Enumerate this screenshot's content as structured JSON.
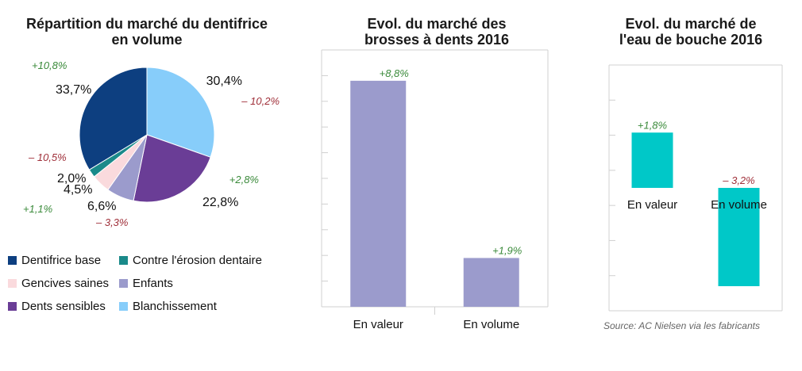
{
  "source": "Source: AC Nielsen via les fabricants",
  "colors": {
    "dentifrice_base": "#0d3f80",
    "erosion": "#1a8a8a",
    "gencives": "#fadadd",
    "enfants": "#9b9bcc",
    "sensibles": "#6a3d96",
    "blanchissement": "#87cdfa",
    "brosses_bar": "#9b9bcc",
    "eau_bar": "#00c8c8",
    "positive_label": "#3a8a3a",
    "negative_label": "#a0303a",
    "grid": "#d0d0d0"
  },
  "chart_data": [
    {
      "type": "pie",
      "title_line1": "Répartition du marché du dentifrice",
      "title_line2": "en volume",
      "slices": [
        {
          "name": "Blanchissement",
          "value": 30.4,
          "label": "30,4%",
          "change": "– 10,2%",
          "color_key": "blanchissement",
          "positive": false
        },
        {
          "name": "Dents sensibles",
          "value": 22.8,
          "label": "22,8%",
          "change": "+2,8%",
          "color_key": "sensibles",
          "positive": true
        },
        {
          "name": "Enfants",
          "value": 6.6,
          "label": "6,6%",
          "change": "– 3,3%",
          "color_key": "enfants",
          "positive": false
        },
        {
          "name": "Gencives saines",
          "value": 4.5,
          "label": "4,5%",
          "change": "+1,1%",
          "color_key": "gencives",
          "positive": true
        },
        {
          "name": "Contre l'érosion dentaire",
          "value": 2.0,
          "label": "2,0%",
          "change": "– 10,5%",
          "color_key": "erosion",
          "positive": false
        },
        {
          "name": "Dentifrice base",
          "value": 33.7,
          "label": "33,7%",
          "change": "+10,8%",
          "color_key": "dentifrice_base",
          "positive": true
        }
      ],
      "legend": [
        {
          "name": "Dentifrice base",
          "color_key": "dentifrice_base"
        },
        {
          "name": "Contre l'érosion dentaire",
          "color_key": "erosion"
        },
        {
          "name": "Gencives saines",
          "color_key": "gencives"
        },
        {
          "name": "Enfants",
          "color_key": "enfants"
        },
        {
          "name": "Dents sensibles",
          "color_key": "sensibles"
        },
        {
          "name": "Blanchissement",
          "color_key": "blanchissement"
        }
      ]
    },
    {
      "type": "bar",
      "title_line1": "Evol. du marché des",
      "title_line2": "brosses à dents 2016",
      "categories": [
        "En valeur",
        "En volume"
      ],
      "values": [
        8.8,
        1.9
      ],
      "labels": [
        "+8,8%",
        "+1,9%"
      ],
      "ylim": [
        0,
        10
      ],
      "grid": true
    },
    {
      "type": "bar",
      "title_line1": "Evol. du marché de",
      "title_line2": "l'eau de bouche 2016",
      "categories": [
        "En valeur",
        "En volume"
      ],
      "values": [
        1.8,
        -3.2
      ],
      "labels": [
        "+1,8%",
        "– 3,2%"
      ],
      "ylim": [
        -4,
        4
      ],
      "grid": true
    }
  ]
}
